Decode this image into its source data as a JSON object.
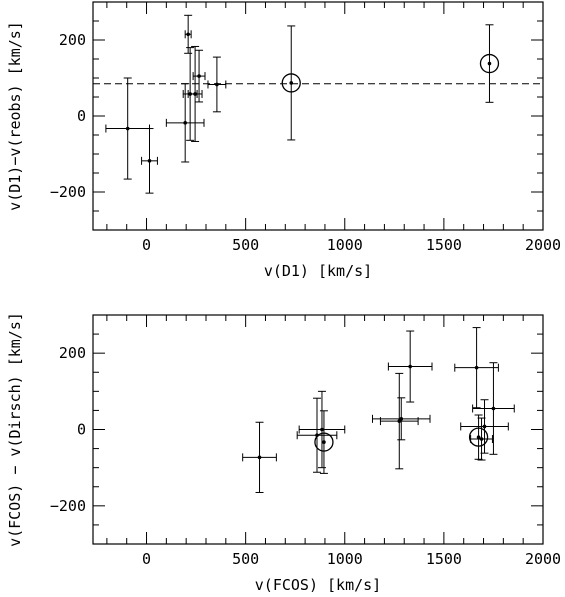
{
  "chart_data": [
    {
      "type": "scatter",
      "xlabel": "v(D1) [km/s]",
      "ylabel": "v(D1)−v(reobs) [km/s]",
      "xlim": [
        -270,
        2000
      ],
      "ylim": [
        -300,
        300
      ],
      "xticks": [
        0,
        500,
        1000,
        1500,
        2000
      ],
      "yticks": [
        -200,
        0,
        200
      ],
      "xtick_labels": [
        "0",
        "500",
        "1000",
        "1500",
        "2000"
      ],
      "ytick_labels": [
        "−200",
        "0",
        "200"
      ],
      "reference_line": {
        "y": 85,
        "style": "dashed"
      },
      "points": [
        {
          "x": -95,
          "y": -33,
          "xerr": 110,
          "yerr": 133
        },
        {
          "x": 15,
          "y": -118,
          "xerr": 40,
          "yerr": 85
        },
        {
          "x": 195,
          "y": -18,
          "xerr": 95,
          "yerr": 103
        },
        {
          "x": 210,
          "y": 215,
          "xerr": 15,
          "yerr": 50
        },
        {
          "x": 220,
          "y": 58,
          "xerr": 35,
          "yerr": 122
        },
        {
          "x": 245,
          "y": 58,
          "xerr": 35,
          "yerr": 125
        },
        {
          "x": 265,
          "y": 105,
          "xerr": 30,
          "yerr": 68
        },
        {
          "x": 355,
          "y": 83,
          "xerr": 45,
          "yerr": 72
        },
        {
          "x": 730,
          "y": 87,
          "xerr": 0,
          "yerr": 150,
          "circled": true
        },
        {
          "x": 1730,
          "y": 138,
          "xerr": 0,
          "yerr": 102,
          "circled": true
        }
      ]
    },
    {
      "type": "scatter",
      "xlabel": "v(FCOS) [km/s]",
      "ylabel": "v(FCOS) − v(Dirsch) [km/s]",
      "xlim": [
        -270,
        2000
      ],
      "ylim": [
        -300,
        300
      ],
      "xticks": [
        0,
        500,
        1000,
        1500,
        2000
      ],
      "yticks": [
        -200,
        0,
        200
      ],
      "xtick_labels": [
        "0",
        "500",
        "1000",
        "1500",
        "2000"
      ],
      "ytick_labels": [
        "−200",
        "0",
        "200"
      ],
      "points": [
        {
          "x": 570,
          "y": -73,
          "xerr": 85,
          "yerr": 92
        },
        {
          "x": 860,
          "y": -15,
          "xerr": 100,
          "yerr": 97
        },
        {
          "x": 885,
          "y": 0,
          "xerr": 115,
          "yerr": 100
        },
        {
          "x": 895,
          "y": -33,
          "xerr": 0,
          "yerr": 82,
          "circled": true
        },
        {
          "x": 1275,
          "y": 22,
          "xerr": 95,
          "yerr": 125
        },
        {
          "x": 1285,
          "y": 28,
          "xerr": 145,
          "yerr": 55
        },
        {
          "x": 1330,
          "y": 165,
          "xerr": 110,
          "yerr": 93
        },
        {
          "x": 1665,
          "y": 162,
          "xerr": 110,
          "yerr": 105
        },
        {
          "x": 1675,
          "y": -20,
          "xerr": 0,
          "yerr": 58,
          "circled": true
        },
        {
          "x": 1690,
          "y": -25,
          "xerr": 55,
          "yerr": 55
        },
        {
          "x": 1705,
          "y": 8,
          "xerr": 120,
          "yerr": 70
        },
        {
          "x": 1750,
          "y": 55,
          "xerr": 105,
          "yerr": 120
        }
      ]
    }
  ]
}
